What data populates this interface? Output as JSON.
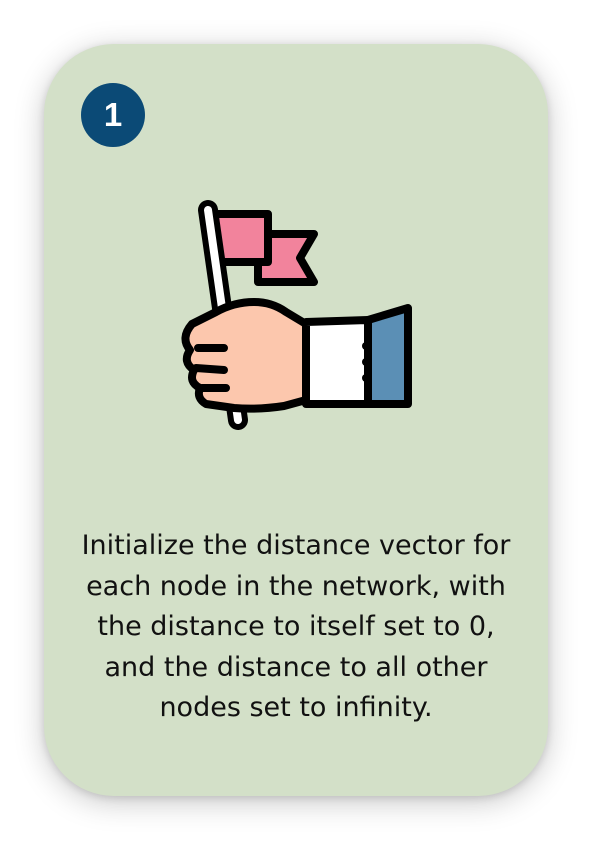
{
  "step": {
    "number": "1"
  },
  "illustration": {
    "icon": "hand-holding-flag-icon",
    "colors": {
      "flag": "#f2839c",
      "skin": "#fcc7ad",
      "cuff": "#ffffff",
      "sleeve": "#5b8fb5",
      "outline": "#000000"
    }
  },
  "description": "Initialize the distance vector for each node in the network, with the distance to itself set to 0, and the distance to all other nodes set to infinity.",
  "colors": {
    "card_background": "#d3e0c8",
    "badge_background": "#0b4a76",
    "text": "#111111"
  }
}
